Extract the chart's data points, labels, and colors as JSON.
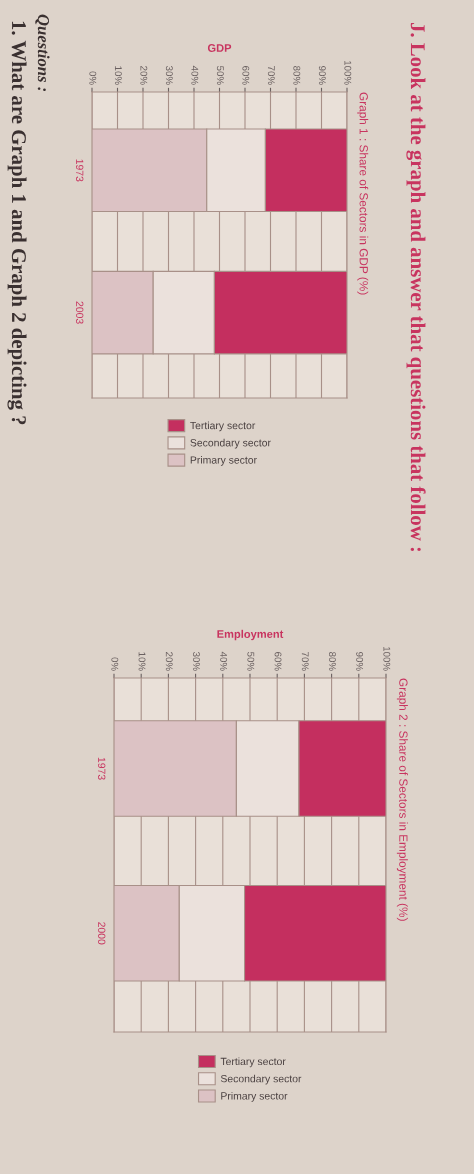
{
  "chart_data": [
    {
      "type": "bar",
      "orientation": "horizontal",
      "stacked": true,
      "title": "Graph 1 : Share of Sectors in GDP (%)",
      "xlabel": "GDP",
      "categories": [
        "1973",
        "2003"
      ],
      "series": [
        {
          "name": "Primary sector",
          "color": "#dcc2c4",
          "values": [
            45,
            24
          ]
        },
        {
          "name": "Secondary sector",
          "color": "#ebe1dc",
          "values": [
            23,
            24
          ]
        },
        {
          "name": "Tertiary sector",
          "color": "#c42f5f",
          "values": [
            32,
            52
          ]
        }
      ],
      "xlim": [
        0,
        100
      ],
      "xticks": [
        {
          "value": 0,
          "label": "0%"
        },
        {
          "value": 10,
          "label": "10%"
        },
        {
          "value": 20,
          "label": "20%"
        },
        {
          "value": 30,
          "label": "30%"
        },
        {
          "value": 40,
          "label": "40%"
        },
        {
          "value": 50,
          "label": "50%"
        },
        {
          "value": 60,
          "label": "60%"
        },
        {
          "value": 70,
          "label": "70%"
        },
        {
          "value": 80,
          "label": "80%"
        },
        {
          "value": 90,
          "label": "90%"
        },
        {
          "value": 100,
          "label": "100%"
        }
      ],
      "grid": "x",
      "legend": "bottom",
      "annotations": [
        "J. Look at the graph and answer that questions that follow :",
        "Questions :",
        "1. What are Graph 1 and Graph 2 depicting ?"
      ]
    },
    {
      "type": "bar",
      "orientation": "horizontal",
      "stacked": true,
      "title": "Graph 2 : Share of Sectors in Employment (%)",
      "xlabel": "Employment",
      "categories": [
        "1973",
        "2000"
      ],
      "series": [
        {
          "name": "Primary sector",
          "color": "#dcc2c4",
          "values": [
            45,
            24
          ]
        },
        {
          "name": "Secondary sector",
          "color": "#ebe1dc",
          "values": [
            23,
            24
          ]
        },
        {
          "name": "Tertiary sector",
          "color": "#c42f5f",
          "values": [
            32,
            52
          ]
        }
      ],
      "xlim": [
        0,
        100
      ],
      "xticks": [
        {
          "value": 0,
          "label": "0%"
        },
        {
          "value": 10,
          "label": "10%"
        },
        {
          "value": 20,
          "label": "20%"
        },
        {
          "value": 30,
          "label": "30%"
        },
        {
          "value": 40,
          "label": "40%"
        },
        {
          "value": 50,
          "label": "50%"
        },
        {
          "value": 60,
          "label": "60%"
        },
        {
          "value": 70,
          "label": "70%"
        },
        {
          "value": 80,
          "label": "80%"
        },
        {
          "value": 90,
          "label": "90%"
        },
        {
          "value": 100,
          "label": "100%"
        }
      ],
      "grid": "x",
      "legend": "bottom"
    }
  ]
}
